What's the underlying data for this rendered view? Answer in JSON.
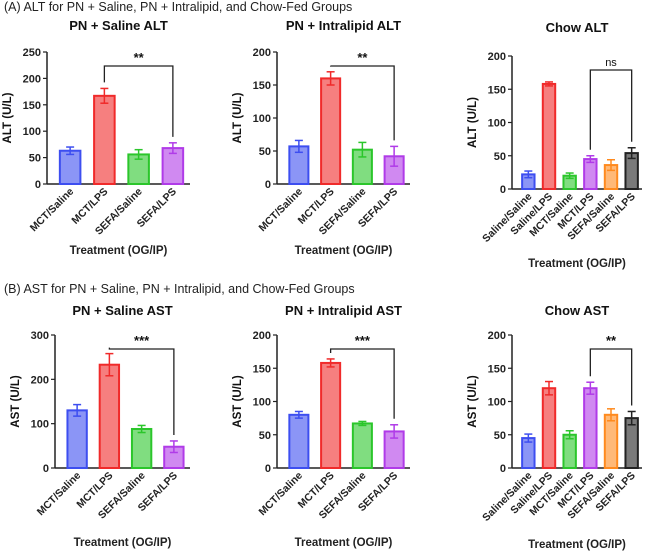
{
  "sections": {
    "a_title": "(A) ALT for PN + Saline, PN + Intralipid, and Chow-Fed Groups",
    "b_title": "(B) AST for PN + Saline, PN + Intralipid, and Chow-Fed Groups"
  },
  "colors": {
    "blue": "#3d4ef0",
    "red": "#f02a2a",
    "green": "#2bc62b",
    "purple": "#b03be8",
    "orange": "#ff8a1e",
    "black": "#222222"
  },
  "chart_data": [
    {
      "type": "bar",
      "title": "PN + Saline ALT",
      "xlabel": "Treatment (OG/IP)",
      "ylabel": "ALT (U/L)",
      "ylim": [
        0,
        250
      ],
      "yticks": [
        0,
        50,
        100,
        150,
        200,
        250
      ],
      "categories": [
        "MCT/Saline",
        "MCT/LPS",
        "SEFA/Saline",
        "SEFA/LPS"
      ],
      "values": [
        63,
        167,
        56,
        68
      ],
      "sem": [
        7,
        14,
        9,
        10
      ],
      "series_colors": [
        "blue",
        "red",
        "green",
        "purple"
      ],
      "significance": {
        "from": "MCT/LPS",
        "to": "SEFA/LPS",
        "label": "**"
      }
    },
    {
      "type": "bar",
      "title": "PN + Intralipid ALT",
      "xlabel": "Treatment (OG/IP)",
      "ylabel": "ALT (U/L)",
      "ylim": [
        0,
        200
      ],
      "yticks": [
        0,
        50,
        100,
        150,
        200
      ],
      "categories": [
        "MCT/Saline",
        "MCT/LPS",
        "SEFA/Saline",
        "SEFA/LPS"
      ],
      "values": [
        57,
        160,
        52,
        42
      ],
      "sem": [
        9,
        10,
        11,
        15
      ],
      "series_colors": [
        "blue",
        "red",
        "green",
        "purple"
      ],
      "significance": {
        "from": "MCT/LPS",
        "to": "SEFA/LPS",
        "label": "**"
      }
    },
    {
      "type": "bar",
      "title": "Chow ALT",
      "xlabel": "Treatment (OG/IP)",
      "ylabel": "ALT (U/L)",
      "ylim": [
        0,
        200
      ],
      "yticks": [
        0,
        50,
        100,
        150,
        200
      ],
      "categories": [
        "Saline/Saline",
        "Saline/LPS",
        "MCT/Saline",
        "MCT/LPS",
        "SEFA/Saline",
        "SEFA/LPS"
      ],
      "values": [
        22,
        158,
        20,
        45,
        36,
        54
      ],
      "sem": [
        5,
        3,
        4,
        5,
        8,
        8
      ],
      "series_colors": [
        "blue",
        "red",
        "green",
        "purple",
        "orange",
        "black"
      ],
      "significance": {
        "from": "MCT/LPS",
        "to": "SEFA/LPS",
        "label": "ns"
      }
    },
    {
      "type": "bar",
      "title": "PN + Saline AST",
      "xlabel": "Treatment (OG/IP)",
      "ylabel": "AST (U/L)",
      "ylim": [
        0,
        300
      ],
      "yticks": [
        0,
        100,
        200,
        300
      ],
      "categories": [
        "MCT/Saline",
        "MCT/LPS",
        "SEFA/Saline",
        "SEFA/LPS"
      ],
      "values": [
        130,
        233,
        88,
        48
      ],
      "sem": [
        13,
        25,
        8,
        13
      ],
      "series_colors": [
        "blue",
        "red",
        "green",
        "purple"
      ],
      "significance": {
        "from": "MCT/LPS",
        "to": "SEFA/LPS",
        "label": "***"
      }
    },
    {
      "type": "bar",
      "title": "PN + Intralipid AST",
      "xlabel": "Treatment (OG/IP)",
      "ylabel": "AST (U/L)",
      "ylim": [
        0,
        200
      ],
      "yticks": [
        0,
        50,
        100,
        150,
        200
      ],
      "categories": [
        "MCT/Saline",
        "MCT/LPS",
        "SEFA/Saline",
        "SEFA/LPS"
      ],
      "values": [
        80,
        158,
        67,
        55
      ],
      "sem": [
        5,
        6,
        3,
        10
      ],
      "series_colors": [
        "blue",
        "red",
        "green",
        "purple"
      ],
      "significance": {
        "from": "MCT/LPS",
        "to": "SEFA/LPS",
        "label": "***"
      }
    },
    {
      "type": "bar",
      "title": "Chow AST",
      "xlabel": "Treatment (OG/IP)",
      "ylabel": "AST (U/L)",
      "ylim": [
        0,
        200
      ],
      "yticks": [
        0,
        50,
        100,
        150,
        200
      ],
      "categories": [
        "Saline/Saline",
        "Saline/LPS",
        "MCT/Saline",
        "MCT/LPS",
        "SEFA/Saline",
        "SEFA/LPS"
      ],
      "values": [
        45,
        120,
        50,
        120,
        80,
        75
      ],
      "sem": [
        6,
        10,
        6,
        9,
        9,
        10
      ],
      "series_colors": [
        "blue",
        "red",
        "green",
        "purple",
        "orange",
        "black"
      ],
      "significance": {
        "from": "MCT/LPS",
        "to": "SEFA/LPS",
        "label": "**"
      }
    }
  ]
}
